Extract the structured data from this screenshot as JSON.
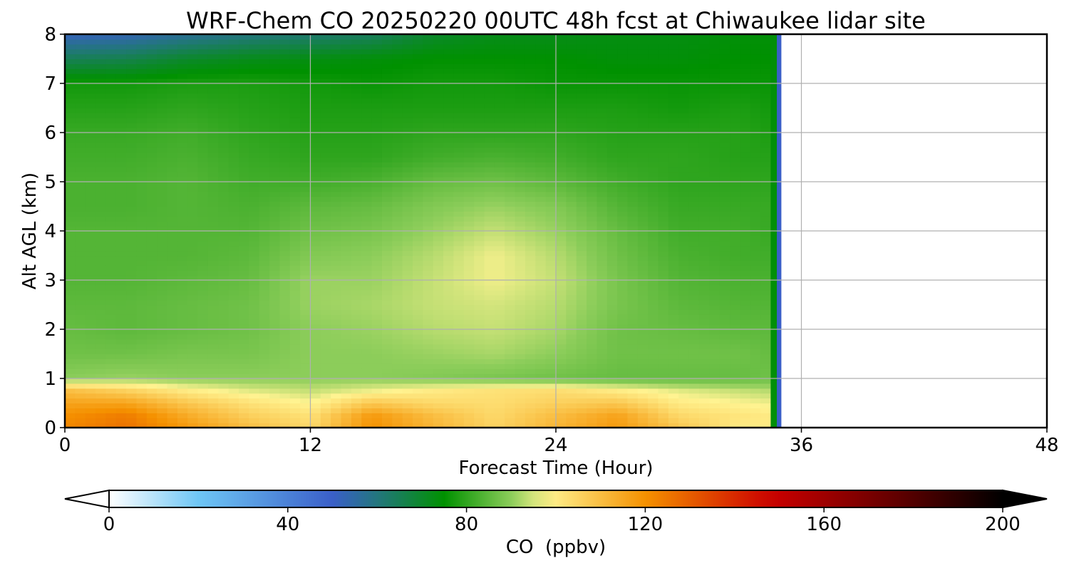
{
  "chart_data": {
    "type": "heatmap",
    "title": "WRF-Chem CO  20250220 00UTC 48h fcst at Chiwaukee lidar site",
    "xlabel": "Forecast Time (Hour)",
    "ylabel": "Alt AGL (km)",
    "xlim": [
      0,
      48
    ],
    "ylim": [
      0,
      8
    ],
    "xticks": [
      0,
      12,
      24,
      36,
      48
    ],
    "yticks": [
      0,
      1,
      2,
      3,
      4,
      5,
      6,
      7,
      8
    ],
    "grid": true,
    "data_end_hour": 35,
    "z_levels_km": [
      0,
      0.25,
      0.5,
      0.75,
      1,
      1.5,
      2,
      2.5,
      3,
      3.5,
      4,
      4.5,
      5,
      5.5,
      6,
      6.5,
      7,
      7.5,
      8
    ],
    "x_hours": [
      0,
      3,
      6,
      9,
      12,
      15,
      18,
      21,
      24,
      27,
      30,
      33,
      34.5
    ],
    "values_ppbv": [
      [
        122,
        126,
        118,
        110,
        104,
        120,
        112,
        105,
        112,
        118,
        108,
        100,
        100
      ],
      [
        120,
        124,
        114,
        106,
        102,
        118,
        110,
        104,
        110,
        116,
        104,
        101,
        100
      ],
      [
        116,
        116,
        108,
        102,
        98,
        108,
        104,
        103,
        106,
        108,
        100,
        98,
        97
      ],
      [
        110,
        106,
        100,
        96,
        94,
        97,
        100,
        102,
        103,
        100,
        96,
        94,
        93
      ],
      [
        90,
        91,
        90,
        90,
        90,
        90,
        89,
        88,
        87,
        86,
        86,
        86,
        87
      ],
      [
        87,
        87,
        88,
        88,
        90,
        90,
        91,
        92,
        90,
        87,
        87,
        87,
        86
      ],
      [
        86,
        85,
        86,
        87,
        90,
        91,
        93,
        94,
        92,
        87,
        86,
        85,
        85
      ],
      [
        85,
        85,
        86,
        87,
        91,
        92,
        94,
        95,
        93,
        88,
        85,
        84,
        84
      ],
      [
        84,
        84,
        85,
        86,
        91,
        91,
        94,
        97,
        94,
        88,
        84,
        83,
        83
      ],
      [
        84,
        84,
        84,
        85,
        89,
        90,
        93,
        97,
        93,
        87,
        83,
        82,
        82
      ],
      [
        84,
        84,
        84,
        84,
        87,
        88,
        91,
        94,
        91,
        86,
        82,
        82,
        81
      ],
      [
        83,
        83,
        84,
        83,
        85,
        86,
        89,
        91,
        89,
        84,
        81,
        81,
        81
      ],
      [
        83,
        83,
        84,
        82,
        82,
        83,
        86,
        87,
        85,
        82,
        80,
        80,
        80
      ],
      [
        82,
        82,
        83,
        81,
        80,
        80,
        82,
        83,
        82,
        80,
        80,
        79,
        79
      ],
      [
        81,
        81,
        82,
        80,
        79,
        79,
        80,
        80,
        80,
        79,
        79,
        79,
        78
      ],
      [
        79,
        79,
        80,
        79,
        78,
        78,
        78,
        78,
        78,
        78,
        77,
        78,
        77
      ],
      [
        77,
        77,
        78,
        78,
        77,
        76,
        77,
        77,
        76,
        76,
        76,
        76,
        76
      ],
      [
        65,
        66,
        70,
        72,
        73,
        74,
        75,
        75,
        75,
        74,
        74,
        75,
        75
      ],
      [
        52,
        53,
        57,
        60,
        62,
        64,
        70,
        72,
        72,
        73,
        73,
        74,
        74
      ]
    ],
    "colorbar": {
      "label": "CO  (ppbv)",
      "min": 0,
      "max": 200,
      "ticks": [
        0,
        40,
        80,
        120,
        160,
        200
      ],
      "extend": "both",
      "color_stops": [
        {
          "value": 0,
          "color": "#ffffff"
        },
        {
          "value": 20,
          "color": "#6ec6f5"
        },
        {
          "value": 50,
          "color": "#3a5fc8"
        },
        {
          "value": 62,
          "color": "#1e7a6e"
        },
        {
          "value": 75,
          "color": "#009100"
        },
        {
          "value": 90,
          "color": "#8ccd5a"
        },
        {
          "value": 98,
          "color": "#fff391"
        },
        {
          "value": 120,
          "color": "#f59100"
        },
        {
          "value": 148,
          "color": "#cc0000"
        },
        {
          "value": 175,
          "color": "#660000"
        },
        {
          "value": 200,
          "color": "#000000"
        }
      ]
    }
  }
}
